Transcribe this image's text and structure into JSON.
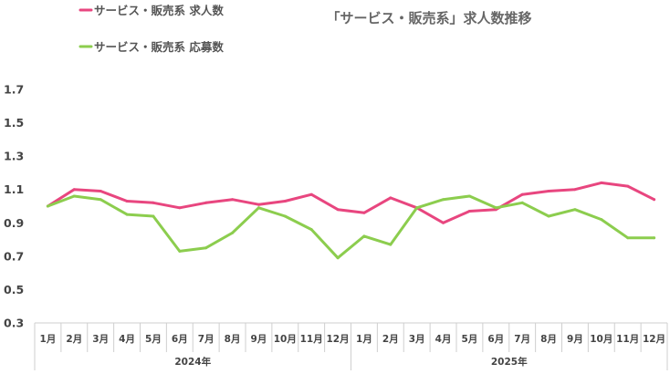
{
  "chart_data": {
    "type": "line",
    "title": "「サービス・販売系」求人数推移",
    "xlabel": "",
    "ylabel": "",
    "ylim": [
      0.3,
      1.7
    ],
    "yticks": [
      "0.3",
      "0.5",
      "0.7",
      "0.9",
      "1.1",
      "1.3",
      "1.5",
      "1.7"
    ],
    "grid": false,
    "legend_position": "top-left",
    "year_groups": [
      {
        "label": "2024年",
        "months": [
          "1月",
          "2月",
          "3月",
          "4月",
          "5月",
          "6月",
          "7月",
          "8月",
          "9月",
          "10月",
          "11月",
          "12月"
        ]
      },
      {
        "label": "2025年",
        "months": [
          "1月",
          "2月",
          "3月",
          "4月",
          "5月",
          "6月",
          "7月",
          "8月",
          "9月",
          "10月",
          "11月",
          "12月"
        ]
      }
    ],
    "series": [
      {
        "name": "サービス・販売系 求人数",
        "color": "#e8467f",
        "values": [
          1.0,
          1.1,
          1.09,
          1.03,
          1.02,
          0.99,
          1.02,
          1.04,
          1.01,
          1.03,
          1.07,
          0.98,
          0.96,
          1.05,
          0.99,
          0.9,
          0.97,
          0.98,
          1.07,
          1.09,
          1.1,
          1.14,
          1.12,
          1.04
        ]
      },
      {
        "name": "サービス・販売系 応募数",
        "color": "#8ccd4e",
        "values": [
          1.0,
          1.06,
          1.04,
          0.95,
          0.94,
          0.73,
          0.75,
          0.84,
          0.99,
          0.94,
          0.86,
          0.69,
          0.82,
          0.77,
          0.99,
          1.04,
          1.06,
          0.99,
          1.02,
          0.94,
          0.98,
          0.92,
          0.81,
          0.81
        ]
      }
    ]
  }
}
